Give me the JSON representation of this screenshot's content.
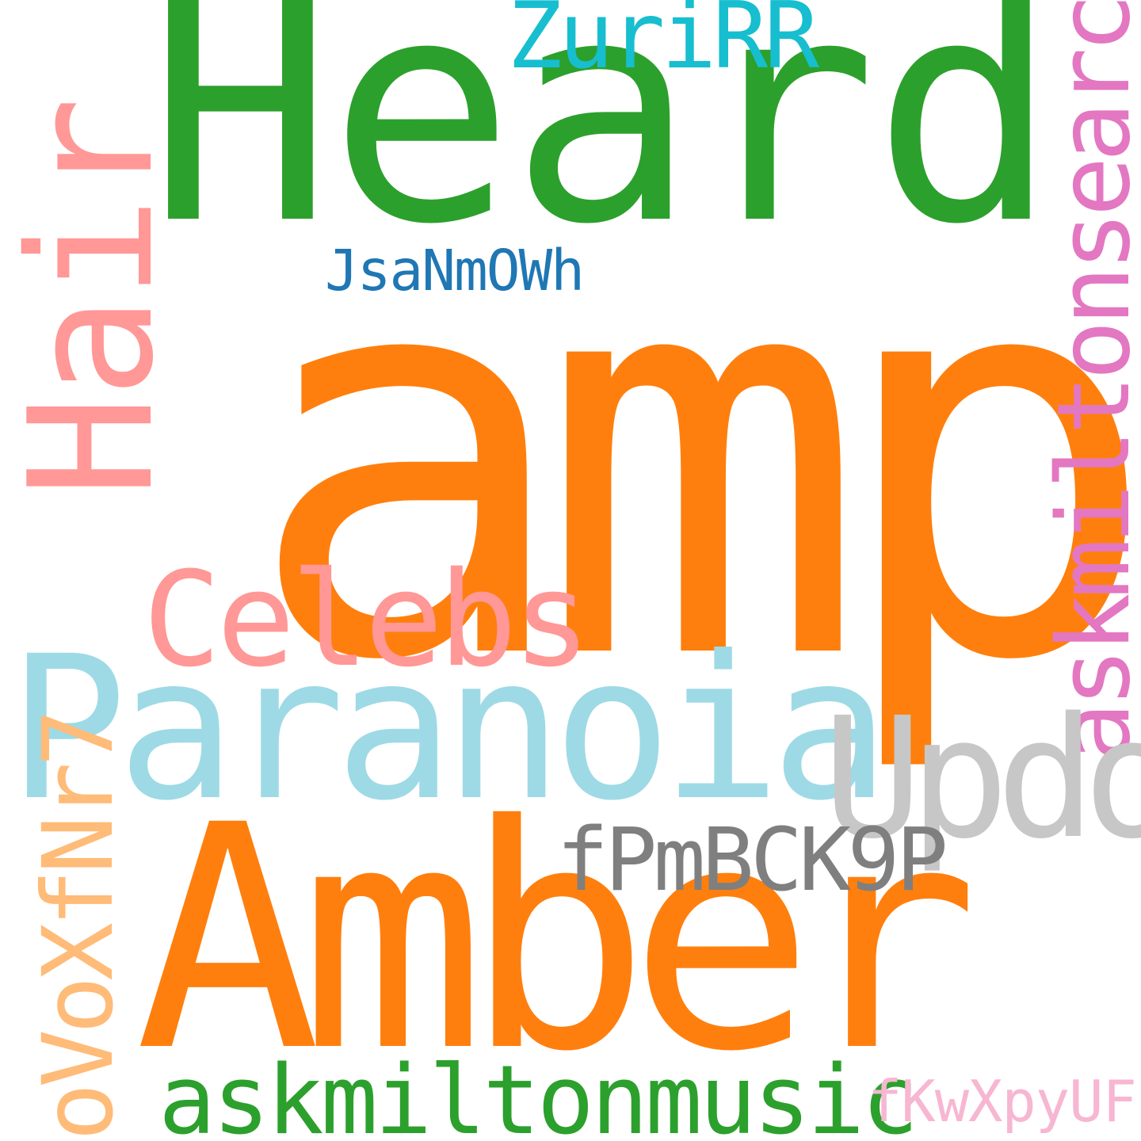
{
  "words": [
    {
      "text": "amp",
      "color": "#ff7f0e",
      "orientation": "horizontal"
    },
    {
      "text": "Heard",
      "color": "#2ca02c",
      "orientation": "horizontal"
    },
    {
      "text": "Amber",
      "color": "#ff7f0e",
      "orientation": "horizontal"
    },
    {
      "text": "Paranoia",
      "color": "#9edae5",
      "orientation": "horizontal"
    },
    {
      "text": "Hair",
      "color": "#ff9896",
      "orientation": "vertical"
    },
    {
      "text": "askmiltonsearch",
      "color": "#e377c2",
      "orientation": "vertical"
    },
    {
      "text": "Updo",
      "color": "#c7c7c7",
      "orientation": "horizontal"
    },
    {
      "text": "Celebs",
      "color": "#ff9896",
      "orientation": "horizontal"
    },
    {
      "text": "askmiltonmusic",
      "color": "#2ca02c",
      "orientation": "horizontal"
    },
    {
      "text": "oVoXfNr7",
      "color": "#ffbb78",
      "orientation": "vertical"
    },
    {
      "text": "ZuriRR",
      "color": "#17becf",
      "orientation": "horizontal"
    },
    {
      "text": "fPmBCK9P",
      "color": "#7f7f7f",
      "orientation": "horizontal"
    },
    {
      "text": "JsaNmOWh",
      "color": "#1f77b4",
      "orientation": "horizontal"
    },
    {
      "text": "fKwXpyUF",
      "color": "#f7b6d2",
      "orientation": "horizontal"
    }
  ]
}
